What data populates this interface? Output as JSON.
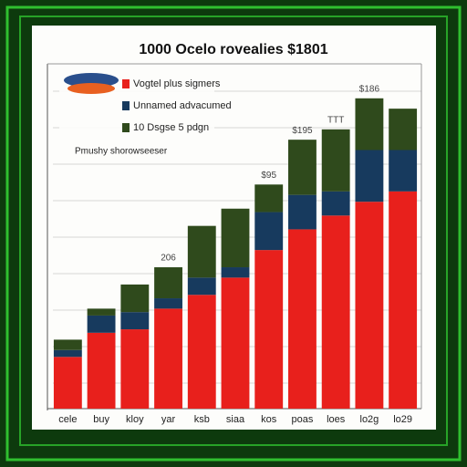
{
  "chart_data": {
    "type": "stacked_bar",
    "title": "1000 Ocelo rovealies $1801",
    "legend_note": "Pmushy shorowseeser",
    "categories": [
      "cele",
      "buy",
      "kloy",
      "yar",
      "ksb",
      "siaa",
      "kos",
      "poas",
      "loes",
      "lo2g",
      "lo29"
    ],
    "series": [
      {
        "name": "Vogtel plus sigmers",
        "color": "#e8201c",
        "values": [
          15,
          22,
          23,
          29,
          33,
          38,
          46,
          52,
          56,
          60,
          63
        ]
      },
      {
        "name": "Unnamed advacumed",
        "color": "#173a5e",
        "values": [
          2,
          5,
          5,
          3,
          5,
          3,
          11,
          10,
          7,
          15,
          12
        ]
      },
      {
        "name": "10 Dsgse 5 pdgn",
        "color": "#2f4a1c",
        "values": [
          3,
          2,
          8,
          9,
          15,
          17,
          8,
          16,
          18,
          15,
          12
        ]
      }
    ],
    "annotations": [
      {
        "category": 3,
        "text": "206"
      },
      {
        "category": 6,
        "text": "$95"
      },
      {
        "category": 7,
        "text": "$195"
      },
      {
        "category": 8,
        "text": "TTT"
      },
      {
        "category": 9,
        "text": "$186"
      }
    ],
    "ylim": [
      0,
      100
    ]
  }
}
